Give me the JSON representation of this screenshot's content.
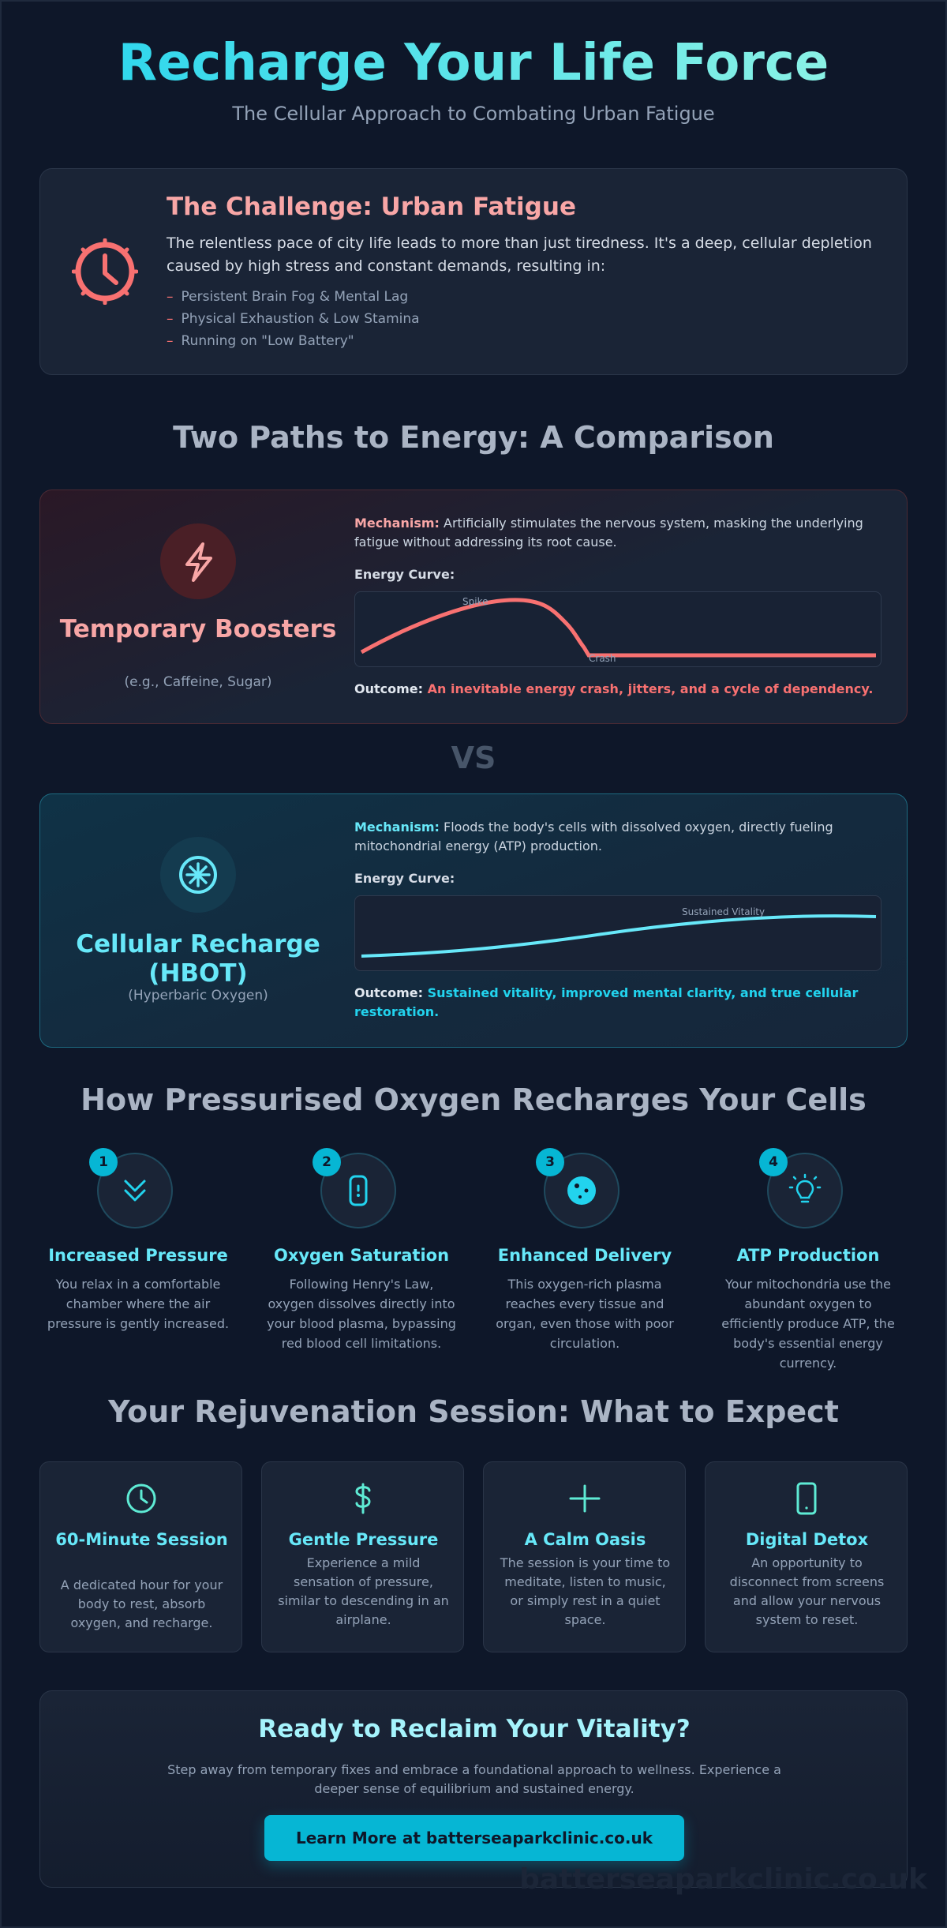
{
  "hero": {
    "title": "Recharge Your Life Force",
    "subtitle": "The Cellular Approach to Combating Urban Fatigue"
  },
  "challenge": {
    "icon": "clock-icon",
    "title": "The Challenge: Urban Fatigue",
    "description": "The relentless pace of city life leads to more than just tiredness. It's a deep, cellular depletion caused by high stress and constant demands, resulting in:",
    "items": [
      "Persistent Brain Fog & Mental Lag",
      "Physical Exhaustion & Low Stamina",
      "Running on \"Low Battery\""
    ]
  },
  "comparison": {
    "title": "Two Paths to Energy: A Comparison",
    "vs": "VS",
    "temporary": {
      "icon": "lightning-icon",
      "title": "Temporary Boosters",
      "subtitle": "(e.g., Caffeine, Sugar)",
      "mechanism_label": "Mechanism:",
      "mechanism": "Artificially stimulates the nervous system, masking the underlying fatigue without addressing its root cause.",
      "curve_label": "Energy Curve:",
      "curve_annotations": [
        "Spike",
        "Crash"
      ],
      "outcome_label": "Outcome:",
      "outcome": "An inevitable energy crash, jitters, and a cycle of dependency.",
      "accent": "#f87171"
    },
    "hbot": {
      "icon": "asterisk-circle-icon",
      "title": "Cellular Recharge (HBOT)",
      "subtitle": "(Hyperbaric Oxygen)",
      "mechanism_label": "Mechanism:",
      "mechanism": "Floods the body's cells with dissolved oxygen, directly fueling mitochondrial energy (ATP) production.",
      "curve_label": "Energy Curve:",
      "curve_annotations": [
        "Sustained Vitality"
      ],
      "outcome_label": "Outcome:",
      "outcome": "Sustained vitality, improved mental clarity, and true cellular restoration.",
      "accent": "#22d3ee"
    }
  },
  "how": {
    "title": "How Pressurised Oxygen Recharges Your Cells",
    "steps": [
      {
        "num": "1",
        "icon": "chevrons-down-icon",
        "title": "Increased Pressure",
        "text": "You relax in a comfortable chamber where the air pressure is gently increased."
      },
      {
        "num": "2",
        "icon": "capsule-icon",
        "title": "Oxygen Saturation",
        "text": "Following Henry's Law, oxygen dissolves directly into your blood plasma, bypassing red blood cell limitations."
      },
      {
        "num": "3",
        "icon": "cell-icon",
        "title": "Enhanced Delivery",
        "text": "This oxygen-rich plasma reaches every tissue and organ, even those with poor circulation."
      },
      {
        "num": "4",
        "icon": "lightbulb-icon",
        "title": "ATP Production",
        "text": "Your mitochondria use the abundant oxygen to efficiently produce ATP, the body's essential energy currency."
      }
    ]
  },
  "session": {
    "title": "Your Rejuvenation Session: What to Expect",
    "cards": [
      {
        "icon": "clock-icon",
        "title": "60-Minute Session",
        "text": "A dedicated hour for your body to rest, absorb oxygen, and recharge."
      },
      {
        "icon": "gauge-icon",
        "title": "Gentle Pressure",
        "text": "Experience a mild sensation of pressure, similar to descending in an airplane."
      },
      {
        "icon": "plus-icon",
        "title": "A Calm Oasis",
        "text": "The session is your time to meditate, listen to music, or simply rest in a quiet space."
      },
      {
        "icon": "phone-icon",
        "title": "Digital Detox",
        "text": "An opportunity to disconnect from screens and allow your nervous system to reset."
      }
    ]
  },
  "cta": {
    "title": "Ready to Reclaim Your Vitality?",
    "text": "Step away from temporary fixes and embrace a foundational approach to wellness. Experience a deeper sense of equilibrium and sustained energy.",
    "button": "Learn More at batterseaparkclinic.co.uk"
  },
  "watermark": "batterseaparkclinic.co.uk",
  "colors": {
    "background": "#0e1729",
    "card": "#1a2436",
    "cyan": "#22d3ee",
    "red": "#f87171"
  }
}
